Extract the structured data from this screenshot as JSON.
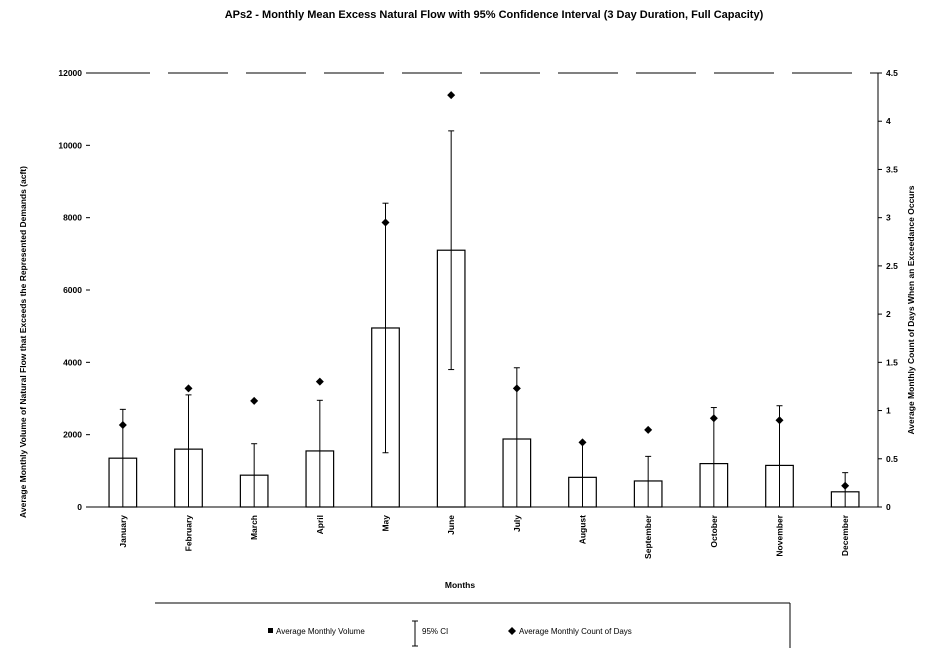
{
  "chart_data": {
    "type": "bar",
    "title": "APs2 - Monthly Mean Excess Natural Flow with 95% Confidence Interval (3 Day Duration, Full Capacity)",
    "xlabel": "Months",
    "ylabel": "Average Monthly Volume of Natural Flow that Exceeds the Represented Demands (acft)",
    "y2label": "Average Monthly Count of Days When an Exceedance Occurs",
    "ylim": [
      0,
      12000
    ],
    "y2lim": [
      0,
      4.5
    ],
    "yticks": [
      "0",
      "2000",
      "4000",
      "6000",
      "8000",
      "10000",
      "12000"
    ],
    "y2ticks": [
      "0",
      "0.5",
      "1",
      "1.5",
      "2",
      "2.5",
      "3",
      "3.5",
      "4",
      "4.5"
    ],
    "categories": [
      "January",
      "February",
      "March",
      "April",
      "May",
      "June",
      "July",
      "August",
      "September",
      "October",
      "November",
      "December"
    ],
    "series": [
      {
        "name": "Average Monthly Volume",
        "kind": "bar",
        "axis": "left",
        "values": [
          1350,
          1600,
          880,
          1550,
          4950,
          7100,
          1880,
          820,
          720,
          1200,
          1150,
          420
        ],
        "ci_low": [
          0,
          0,
          0,
          0,
          1500,
          3800,
          0,
          0,
          0,
          0,
          0,
          0
        ],
        "ci_high": [
          2700,
          3100,
          1750,
          2950,
          8400,
          10400,
          3850,
          1800,
          1400,
          2750,
          2800,
          950
        ]
      },
      {
        "name": "Average Monthly Count of Days",
        "kind": "scatter",
        "axis": "right",
        "values": [
          0.85,
          1.23,
          1.1,
          1.3,
          2.95,
          4.27,
          1.23,
          0.67,
          0.8,
          0.92,
          0.9,
          0.22
        ]
      }
    ],
    "legend": {
      "position": "bottom",
      "volume_label": "Average Monthly Volume",
      "ci_label": "95% CI",
      "count_label": "Average Monthly Count of Days"
    },
    "grid": false
  }
}
